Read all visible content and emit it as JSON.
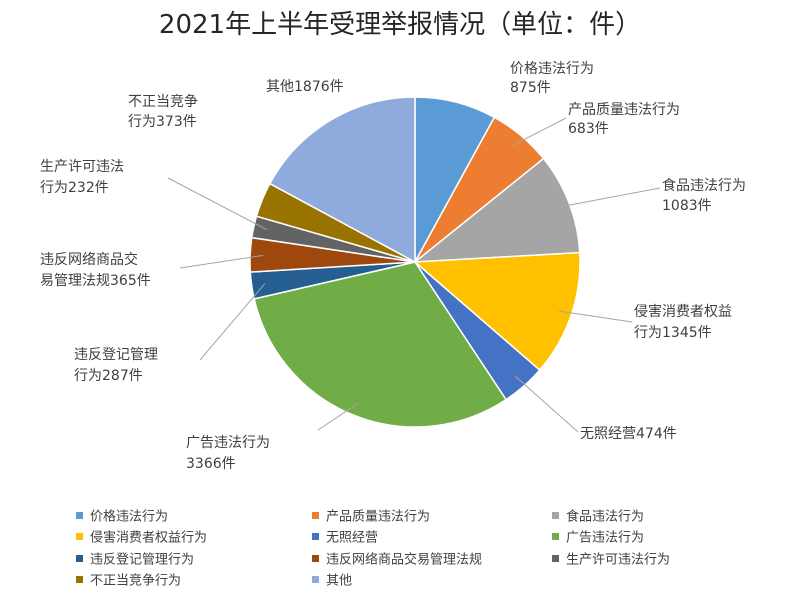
{
  "chart_data": {
    "type": "pie",
    "title": "2021年上半年受理举报情况（单位：件）",
    "categories": [
      "价格违法行为",
      "产品质量违法行为",
      "食品违法行为",
      "侵害消费者权益行为",
      "无照经营",
      "广告违法行为",
      "违反登记管理行为",
      "违反网络商品交易管理法规",
      "生产许可违法行为",
      "不正当竞争行为",
      "其他"
    ],
    "values": [
      875,
      683,
      1083,
      1345,
      474,
      3366,
      287,
      365,
      232,
      373,
      1876
    ],
    "colors": [
      "#5b9bd5",
      "#ed7d31",
      "#a5a5a5",
      "#ffc000",
      "#4472c4",
      "#70ad47",
      "#255e91",
      "#9e480e",
      "#636363",
      "#997300",
      "#8faadc"
    ],
    "data_labels": [
      [
        "价格违法行为",
        "875件"
      ],
      [
        "产品质量违法行为",
        "683件"
      ],
      [
        "食品违法行为",
        "1083件"
      ],
      [
        "侵害消费者权益",
        "行为1345件"
      ],
      [
        "无照经营474件"
      ],
      [
        "广告违法行为",
        "3366件"
      ],
      [
        "违反登记管理",
        "行为287件"
      ],
      [
        "违反网络商品交",
        "易管理法规365件"
      ],
      [
        "生产许可违法",
        "行为232件"
      ],
      [
        "不正当竞争",
        "行为373件"
      ],
      [
        "其他1876件"
      ]
    ],
    "legend_labels": [
      "价格违法行为",
      "产品质量违法行为",
      "食品违法行为",
      "侵害消费者权益行为",
      "无照经营",
      "广告违法行为",
      "违反登记管理行为",
      "违反网络商品交易管理法规",
      "生产许可违法行为",
      "不正当竞争行为",
      "其他"
    ],
    "legend_position": "bottom",
    "start_angle": "12 o'clock",
    "direction": "clockwise"
  }
}
